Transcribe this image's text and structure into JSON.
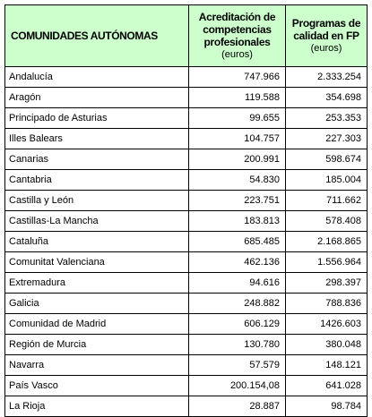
{
  "table": {
    "headers": {
      "region": "COMUNIDADES AUTÓNOMAS",
      "col1_title": "Acreditación de competencias profesionales",
      "col1_unit": "(euros)",
      "col2_title": "Programas de calidad en FP",
      "col2_unit": "(euros)"
    },
    "rows": [
      {
        "region": "Andalucía",
        "acreditacion": "747.966",
        "calidad": "2.333.254"
      },
      {
        "region": "Aragón",
        "acreditacion": "119.588",
        "calidad": "354.698"
      },
      {
        "region": "Principado de Asturias",
        "acreditacion": "99.655",
        "calidad": "253.353"
      },
      {
        "region": "Illes Balears",
        "acreditacion": "104.757",
        "calidad": "227.303"
      },
      {
        "region": "Canarias",
        "acreditacion": "200.991",
        "calidad": "598.674"
      },
      {
        "region": "Cantabria",
        "acreditacion": "54.830",
        "calidad": "185.004"
      },
      {
        "region": "Castilla y León",
        "acreditacion": "223.751",
        "calidad": "711.662"
      },
      {
        "region": "Castillas-La Mancha",
        "acreditacion": "183.813",
        "calidad": "578.408"
      },
      {
        "region": "Cataluña",
        "acreditacion": "685.485",
        "calidad": "2.168.865"
      },
      {
        "region": "Comunitat Valenciana",
        "acreditacion": "462.136",
        "calidad": "1.556.964"
      },
      {
        "region": "Extremadura",
        "acreditacion": "94.616",
        "calidad": "298.397"
      },
      {
        "region": "Galicia",
        "acreditacion": "248.882",
        "calidad": "788.836"
      },
      {
        "region": "Comunidad de Madrid",
        "acreditacion": "606.129",
        "calidad": "1426.603"
      },
      {
        "region": "Región de Murcia",
        "acreditacion": "130.780",
        "calidad": "380.048"
      },
      {
        "region": "Navarra",
        "acreditacion": "57.579",
        "calidad": "148.121"
      },
      {
        "region": "País Vasco",
        "acreditacion": "200.154,08",
        "calidad": "641.028"
      },
      {
        "region": "La Rioja",
        "acreditacion": "28.887",
        "calidad": "98.784"
      }
    ]
  },
  "colors": {
    "header_background": "#ccffcc",
    "border": "#000000"
  }
}
